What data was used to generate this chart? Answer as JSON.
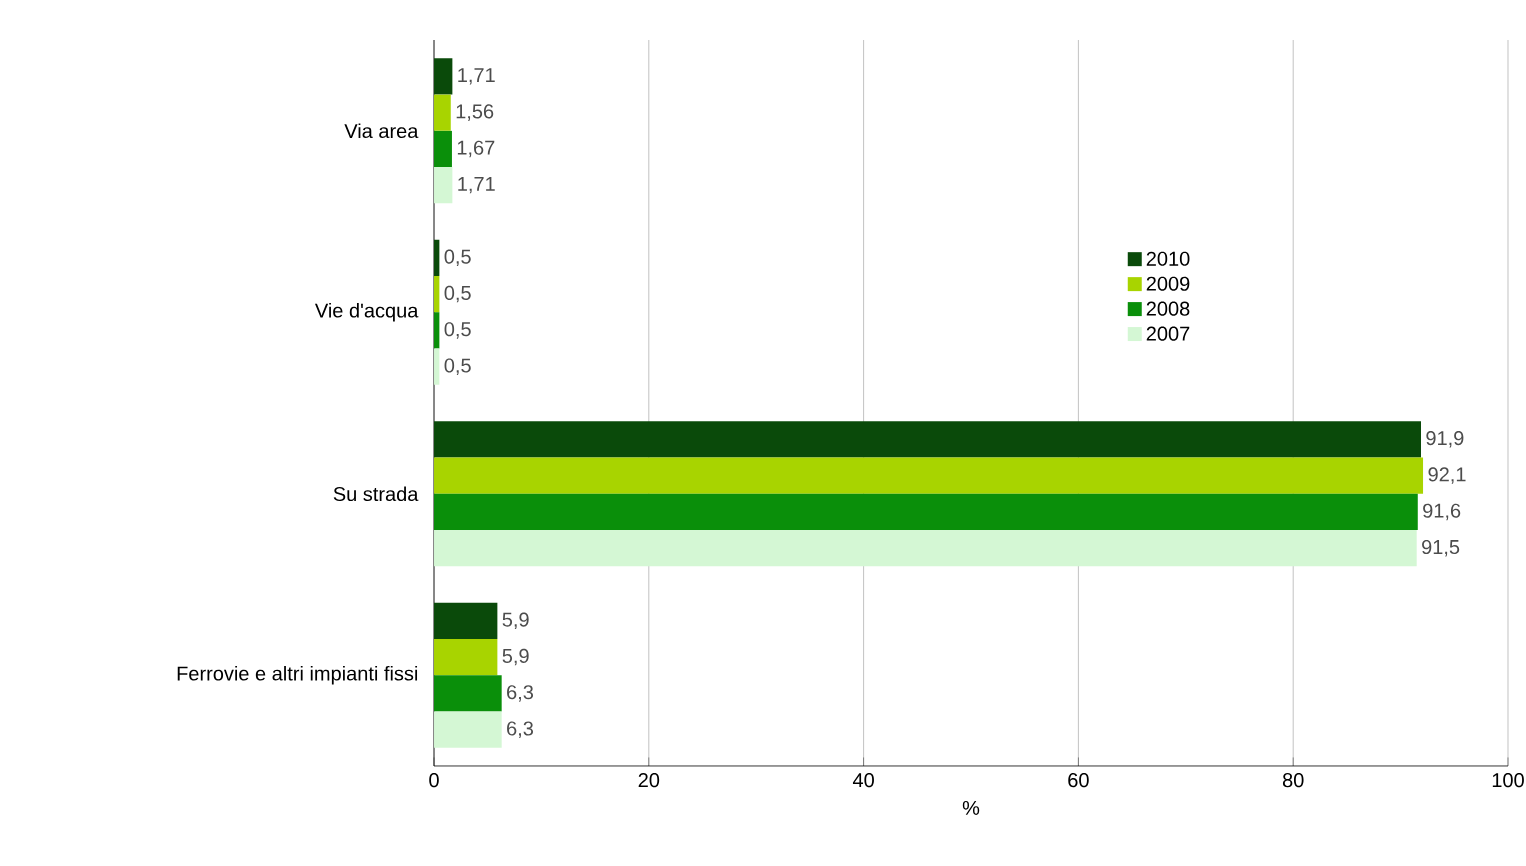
{
  "chart_data": {
    "type": "bar",
    "orientation": "horizontal",
    "xlabel": "%",
    "categories": [
      "Via area",
      "Vie d'acqua",
      "Su strada",
      "Ferrovie e altri impianti fissi"
    ],
    "series": [
      {
        "name": "2010",
        "color": "#0a4a0a",
        "values": [
          1.71,
          0.5,
          91.9,
          5.9
        ],
        "value_labels": [
          "1,71",
          "0,5",
          "91,9",
          "5,9"
        ]
      },
      {
        "name": "2009",
        "color": "#a8d400",
        "values": [
          1.56,
          0.5,
          92.1,
          5.9
        ],
        "value_labels": [
          "1,56",
          "0,5",
          "92,1",
          "5,9"
        ]
      },
      {
        "name": "2008",
        "color": "#0a8f0a",
        "values": [
          1.67,
          0.5,
          91.6,
          6.3
        ],
        "value_labels": [
          "1,67",
          "0,5",
          "91,6",
          "6,3"
        ]
      },
      {
        "name": "2007",
        "color": "#d4f7d4",
        "values": [
          1.71,
          0.5,
          91.5,
          6.3
        ],
        "value_labels": [
          "1,71",
          "0,5",
          "91,5",
          "6,3"
        ]
      }
    ],
    "xlim": [
      0,
      100
    ],
    "xticks": [
      0,
      20,
      40,
      60,
      80,
      100
    ],
    "grid": "x",
    "legend": "right"
  }
}
